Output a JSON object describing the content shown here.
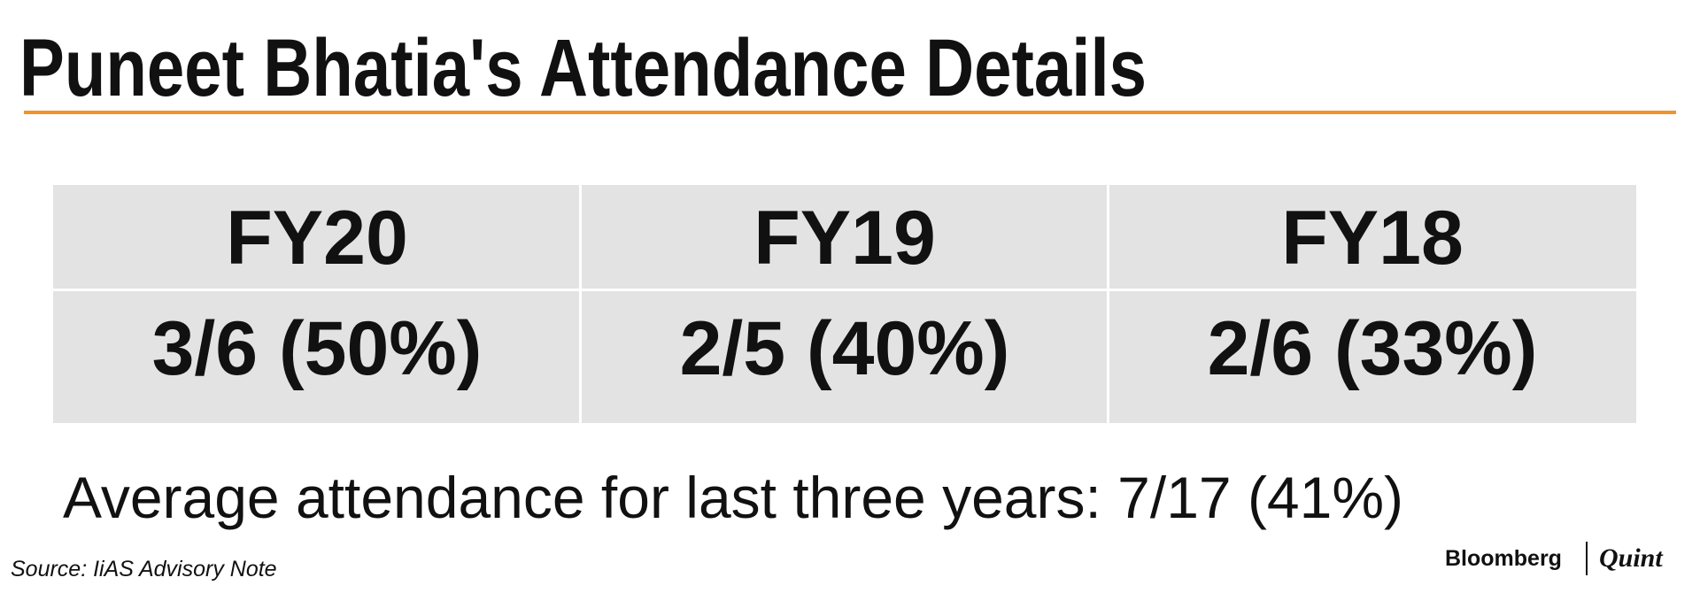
{
  "header": {
    "title": "Puneet Bhatia's Attendance Details"
  },
  "table": {
    "columns": [
      "FY20",
      "FY19",
      "FY18"
    ],
    "rows": [
      [
        "3/6 (50%)",
        "2/5 (40%)",
        "2/6 (33%)"
      ]
    ]
  },
  "note": "Average attendance for last three years: 7/17 (41%)",
  "footer": {
    "source": "Source: IiAS Advisory Note",
    "brand": "Bloomberg",
    "brand_suffix": "Quint"
  }
}
